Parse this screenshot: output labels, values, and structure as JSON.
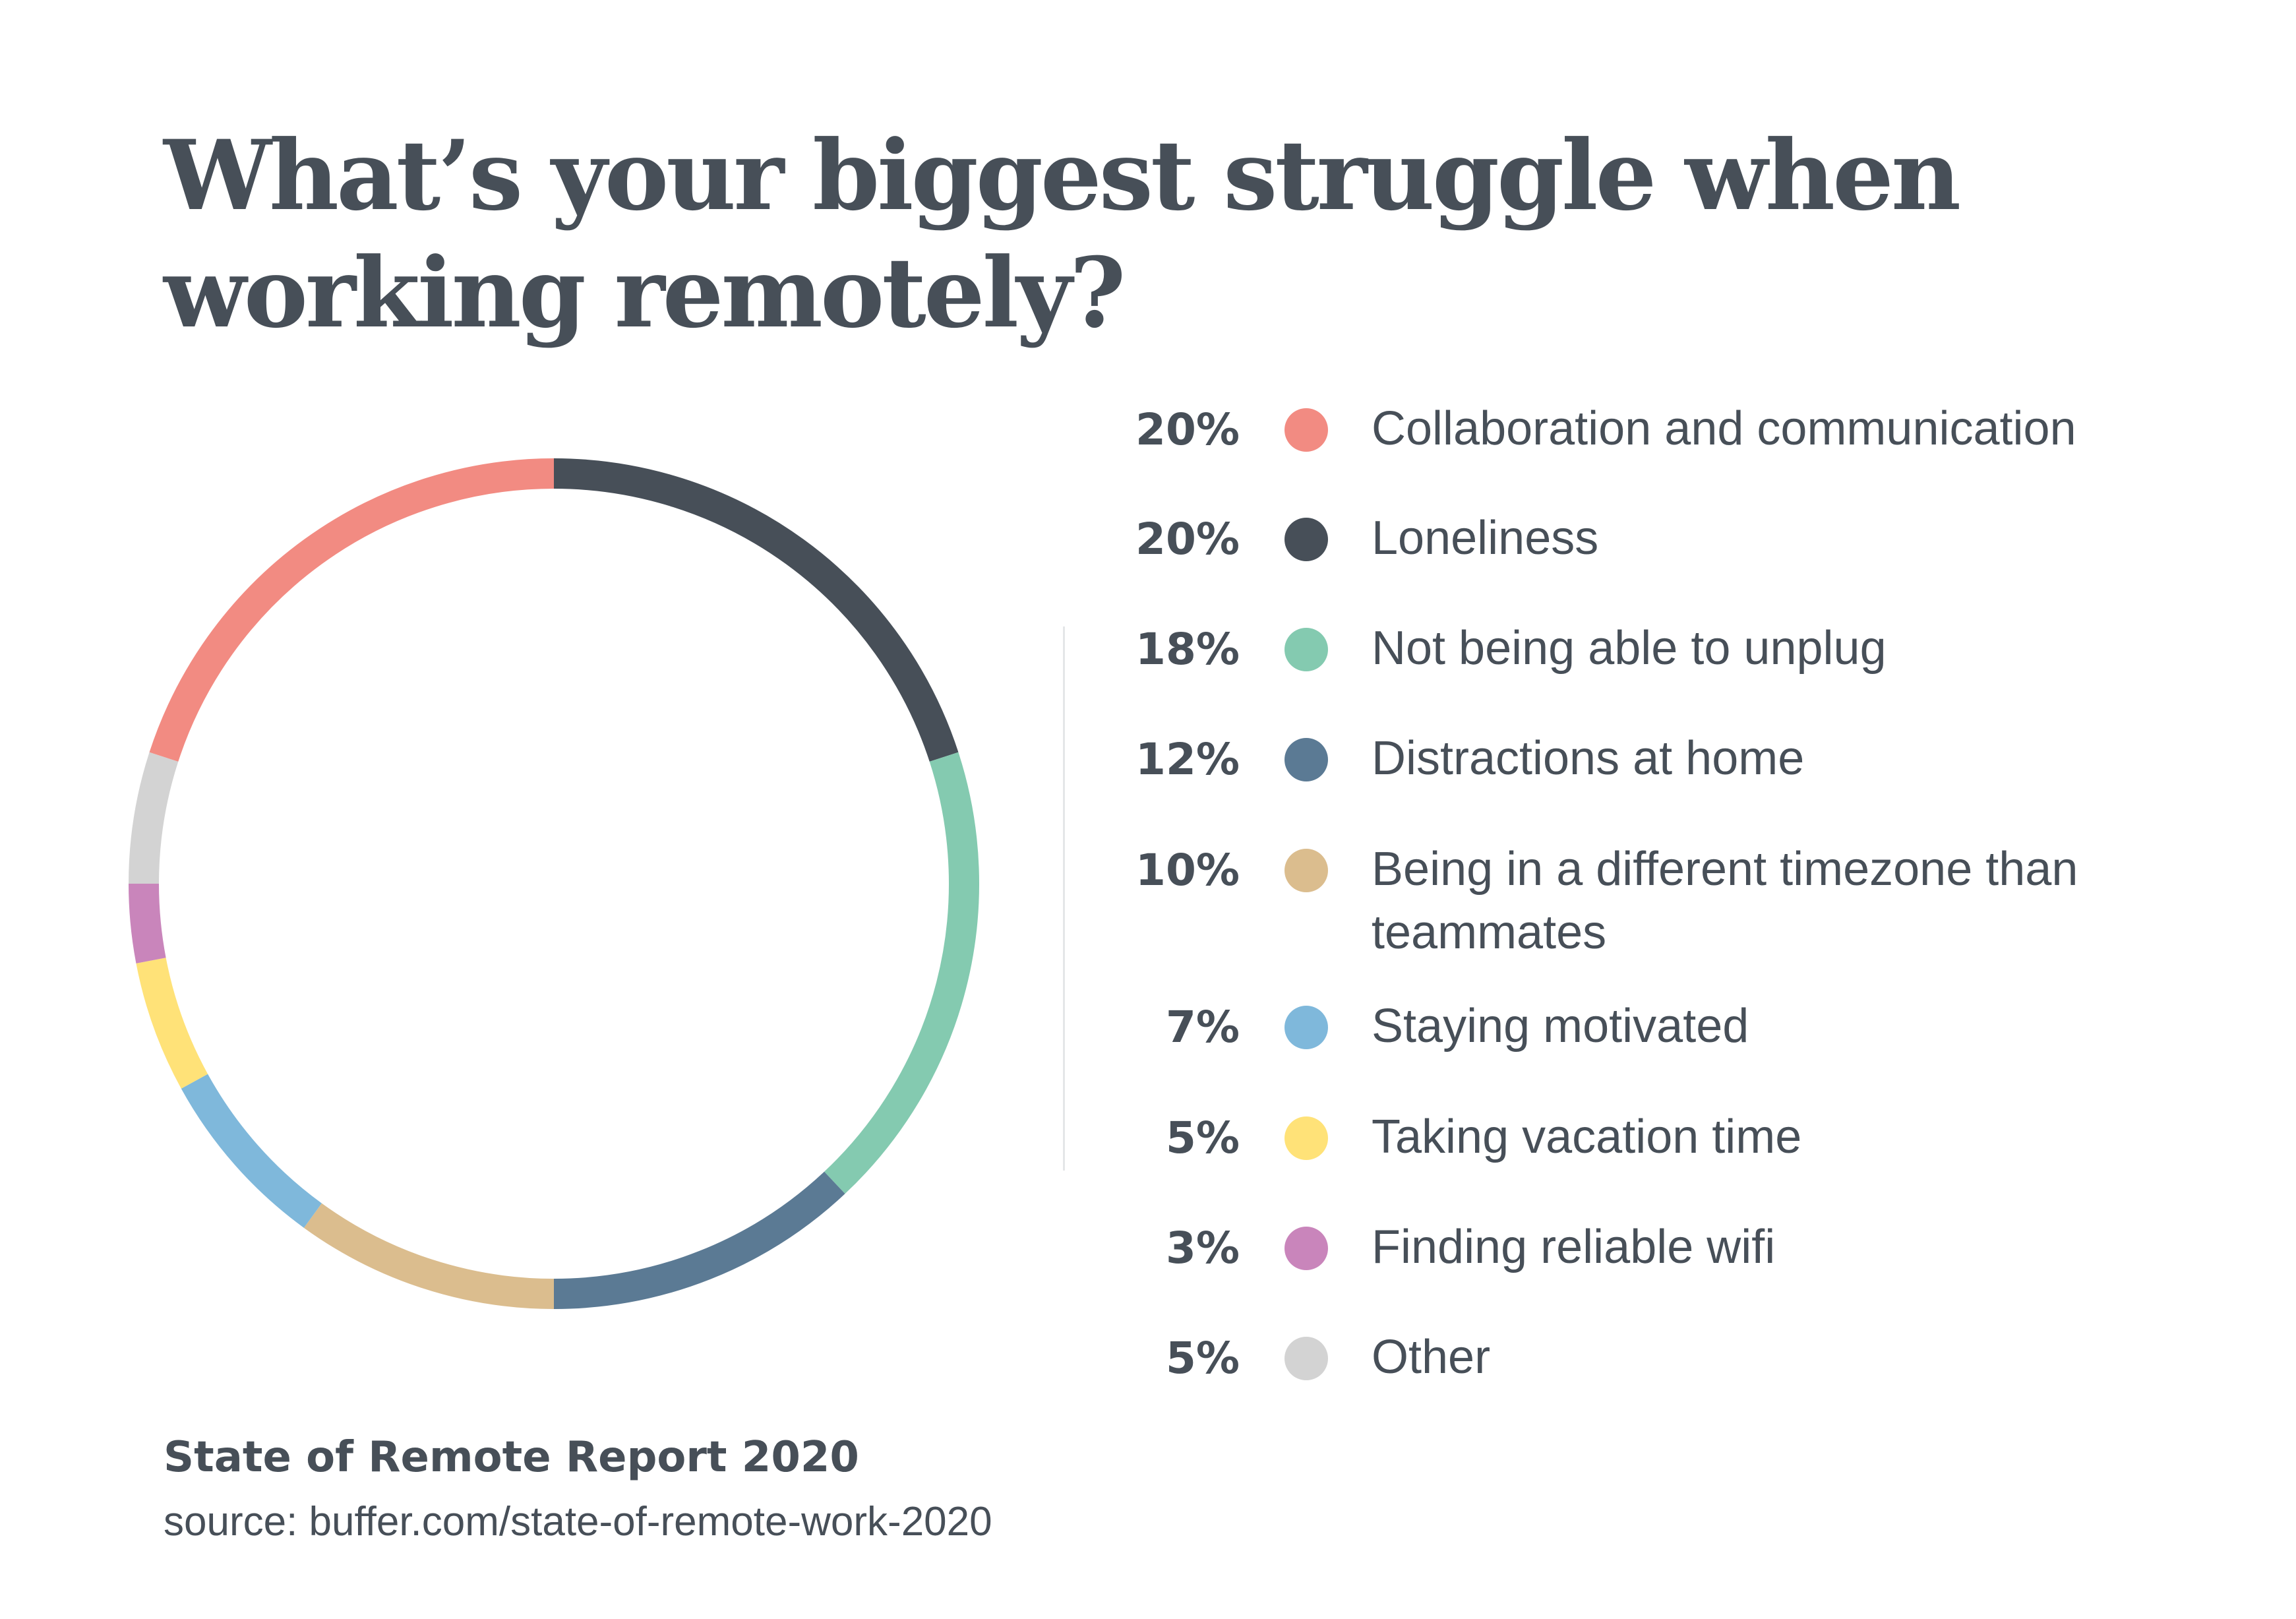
{
  "title": "What’s your biggest struggle when working remotely?",
  "footer": {
    "report": "State of Remote Report 2020",
    "source": "source: buffer.com/state-of-remote-work-2020"
  },
  "chart_data": {
    "type": "pie",
    "style": "donut-ring",
    "start_angle_deg": -90,
    "direction": "clockwise",
    "ring_order": [
      "Loneliness",
      "Not being able to unplug",
      "Distractions at home",
      "Being in a different timezone than teammates",
      "Staying motivated",
      "Taking vacation time",
      "Finding reliable wifi",
      "Other",
      "Collaboration and communication"
    ],
    "categories": [
      "Collaboration and communication",
      "Loneliness",
      "Not being able to unplug",
      "Distractions at home",
      "Being in a different timezone than teammates",
      "Staying motivated",
      "Taking vacation time",
      "Finding reliable wifi",
      "Other"
    ],
    "values": [
      20,
      20,
      18,
      12,
      10,
      7,
      5,
      3,
      5
    ],
    "labels": [
      "20%",
      "20%",
      "18%",
      "12%",
      "10%",
      "7%",
      "5%",
      "3%",
      "5%"
    ],
    "colors": [
      "#f28b82",
      "#474f58",
      "#84cab0",
      "#5b7a94",
      "#dbbd8e",
      "#7fb8db",
      "#ffe278",
      "#c985bb",
      "#d3d3d3"
    ],
    "legend_position": "right"
  }
}
